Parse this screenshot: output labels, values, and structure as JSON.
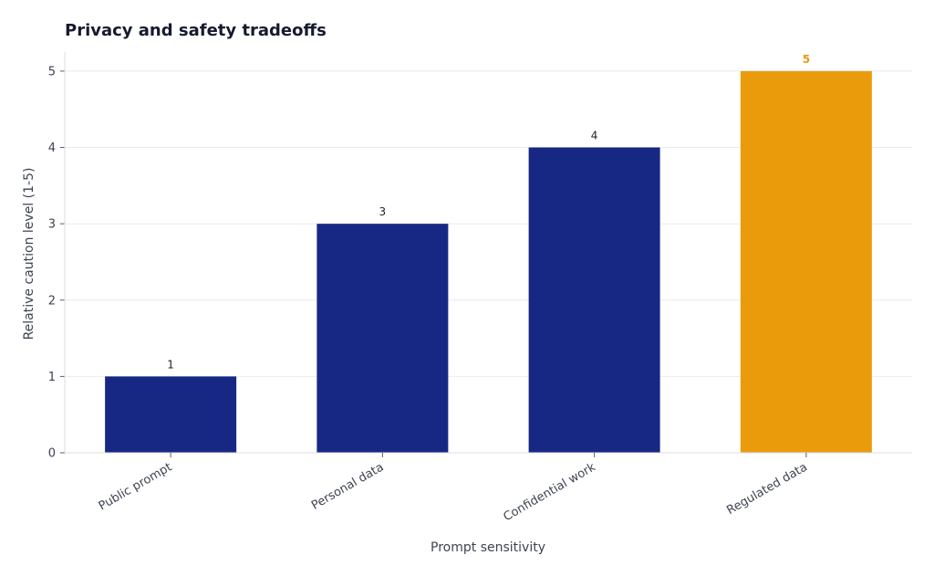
{
  "chart_data": {
    "type": "bar",
    "title": "Privacy and safety tradeoffs",
    "xlabel": "Prompt sensitivity",
    "ylabel": "Relative caution level (1-5)",
    "categories": [
      "Public prompt",
      "Personal data",
      "Confidential work",
      "Regulated data"
    ],
    "values": [
      1,
      3,
      4,
      5
    ],
    "data_labels": [
      "1",
      "3",
      "4",
      "5"
    ],
    "yticks": [
      "0",
      "1",
      "2",
      "3",
      "4",
      "5"
    ],
    "ylim": [
      0,
      5.25
    ],
    "grid": true,
    "colors": {
      "default_bar": "#172884",
      "highlight_bar": "#e99b0c",
      "default_label": "#222222",
      "highlight_label": "#e99b0c"
    },
    "highlight_index": 3
  }
}
